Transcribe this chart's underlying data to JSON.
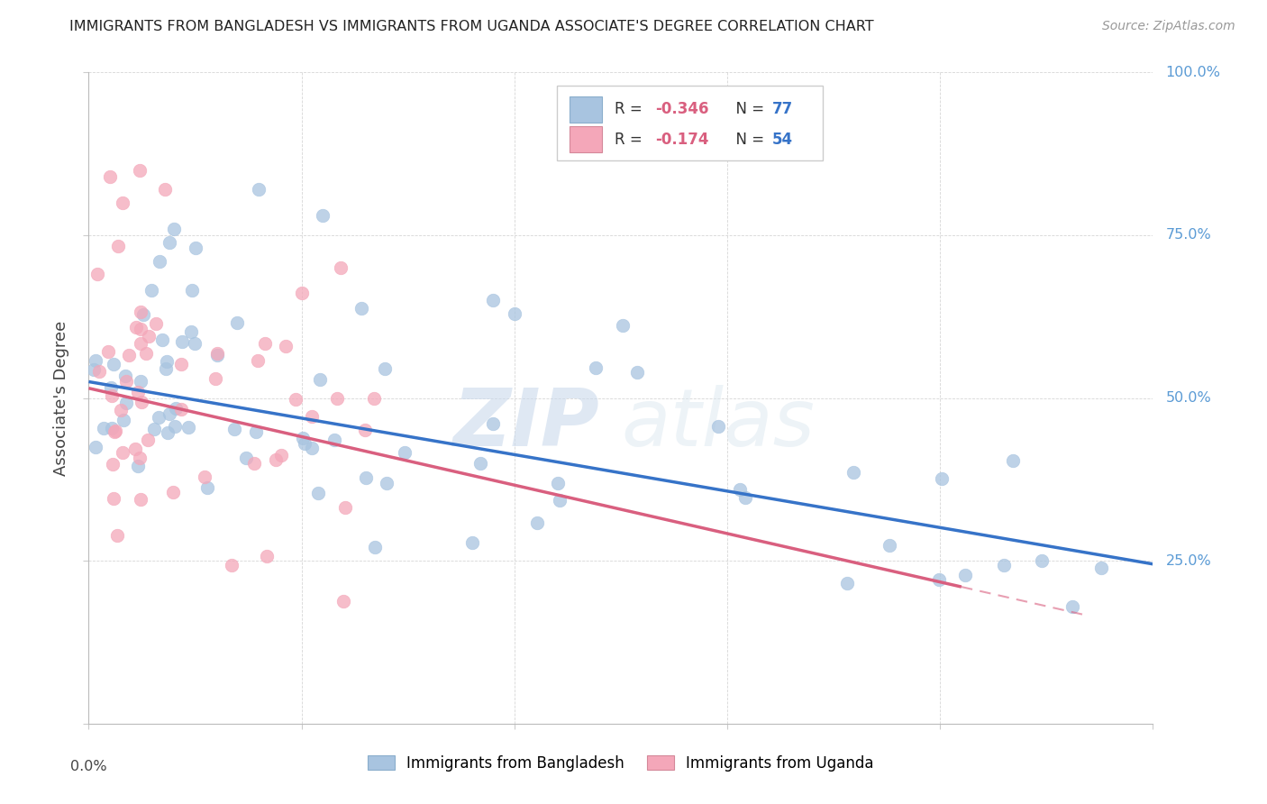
{
  "title": "IMMIGRANTS FROM BANGLADESH VS IMMIGRANTS FROM UGANDA ASSOCIATE'S DEGREE CORRELATION CHART",
  "source": "Source: ZipAtlas.com",
  "ylabel": "Associate's Degree",
  "blue_color": "#a8c4e0",
  "pink_color": "#f4a7b9",
  "blue_line_color": "#3673c8",
  "pink_line_color": "#d95f7f",
  "pink_line_dash": [
    6,
    4
  ],
  "watermark_zip": "ZIP",
  "watermark_atlas": "atlas",
  "xlim": [
    0.0,
    0.25
  ],
  "ylim": [
    0.0,
    1.0
  ],
  "right_y_labels": {
    "1.0": "100.0%",
    "0.75": "75.0%",
    "0.5": "50.0%",
    "0.25": "25.0%"
  },
  "right_y_color": "#5b9bd5",
  "bd_line_x": [
    0.0,
    0.25
  ],
  "bd_line_y": [
    0.525,
    0.245
  ],
  "ug_line_x": [
    0.0,
    0.205
  ],
  "ug_line_y": [
    0.515,
    0.21
  ]
}
